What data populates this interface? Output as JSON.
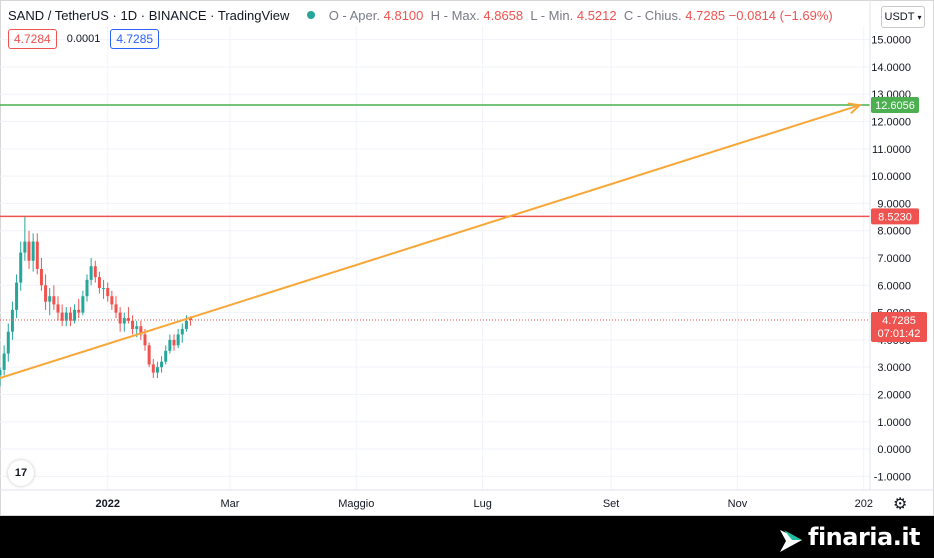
{
  "header": {
    "symbol": "SAND / TetherUS",
    "interval": "1D",
    "exchange": "BINANCE",
    "platform": "TradingView",
    "open_label": "O - Aper.",
    "open_value": "4.8100",
    "high_label": "H - Max.",
    "high_value": "4.8658",
    "low_label": "L - Min.",
    "low_value": "4.5212",
    "close_label": "C - Chius.",
    "close_value": "4.7285",
    "change_value": "−0.0814 (−1.69%)"
  },
  "quote": {
    "bid": "4.7284",
    "spread": "0.0001",
    "ask": "4.7285"
  },
  "currency_selector": "USDT",
  "colors": {
    "up": "#26a69a",
    "down": "#ef5350",
    "trendline": "#f7a738",
    "resistance": "#ef5350",
    "target": "#4caf50",
    "price_line": "#ef5350"
  },
  "brand": {
    "name": "finaria.it"
  },
  "chart_data": {
    "type": "candlestick",
    "title": "",
    "xlabel": "",
    "ylabel": "",
    "ylim": [
      -1.5,
      15.5
    ],
    "x_ticks": [
      "2022",
      "Mar",
      "Maggio",
      "Lug",
      "Set",
      "Nov",
      "202"
    ],
    "y_ticks": [
      "15.0000",
      "14.0000",
      "13.0000",
      "12.0000",
      "11.0000",
      "10.0000",
      "9.0000",
      "8.0000",
      "7.0000",
      "6.0000",
      "5.0000",
      "4.0000",
      "3.0000",
      "2.0000",
      "1.0000",
      "0.0000",
      "-1.0000"
    ],
    "x_tick_dates": [
      "2022-01-01",
      "2022-03-01",
      "2022-05-01",
      "2022-07-01",
      "2022-09-01",
      "2022-11-01",
      "2023-01-01"
    ],
    "x_range": [
      "2021-11-10",
      "2023-01-04"
    ],
    "horizontal_lines": [
      {
        "label": "12.6056",
        "value": 12.6056,
        "color": "#4caf50"
      },
      {
        "label": "8.5230",
        "value": 8.523,
        "color": "#ef5350"
      }
    ],
    "current_price": {
      "label": "4.7285",
      "value": 4.7285,
      "countdown": "07:01:42"
    },
    "trendline": {
      "start": [
        "2021-11-10",
        2.6
      ],
      "end": [
        "2022-12-30",
        12.6
      ]
    },
    "candles": [
      {
        "d": "2021-11-10",
        "o": 2.7,
        "h": 3.0,
        "l": 2.3,
        "c": 2.9
      },
      {
        "d": "2021-11-12",
        "o": 2.9,
        "h": 3.8,
        "l": 2.7,
        "c": 3.5
      },
      {
        "d": "2021-11-14",
        "o": 3.5,
        "h": 4.6,
        "l": 3.2,
        "c": 4.3
      },
      {
        "d": "2021-11-16",
        "o": 4.3,
        "h": 5.4,
        "l": 4.0,
        "c": 5.1
      },
      {
        "d": "2021-11-18",
        "o": 5.1,
        "h": 6.4,
        "l": 4.8,
        "c": 6.1
      },
      {
        "d": "2021-11-20",
        "o": 6.1,
        "h": 7.6,
        "l": 5.8,
        "c": 7.2
      },
      {
        "d": "2021-11-22",
        "o": 7.2,
        "h": 8.5,
        "l": 6.9,
        "c": 7.6
      },
      {
        "d": "2021-11-24",
        "o": 7.6,
        "h": 8.0,
        "l": 6.6,
        "c": 6.9
      },
      {
        "d": "2021-11-26",
        "o": 6.9,
        "h": 7.9,
        "l": 6.5,
        "c": 7.6
      },
      {
        "d": "2021-11-28",
        "o": 7.6,
        "h": 7.9,
        "l": 6.4,
        "c": 6.6
      },
      {
        "d": "2021-11-30",
        "o": 6.6,
        "h": 7.0,
        "l": 5.8,
        "c": 6.0
      },
      {
        "d": "2021-12-02",
        "o": 6.0,
        "h": 6.4,
        "l": 5.1,
        "c": 5.4
      },
      {
        "d": "2021-12-04",
        "o": 5.4,
        "h": 5.9,
        "l": 4.9,
        "c": 5.6
      },
      {
        "d": "2021-12-06",
        "o": 5.6,
        "h": 6.0,
        "l": 5.1,
        "c": 5.3
      },
      {
        "d": "2021-12-08",
        "o": 5.3,
        "h": 5.6,
        "l": 4.7,
        "c": 5.0
      },
      {
        "d": "2021-12-10",
        "o": 5.0,
        "h": 5.3,
        "l": 4.5,
        "c": 4.7
      },
      {
        "d": "2021-12-12",
        "o": 4.7,
        "h": 5.2,
        "l": 4.5,
        "c": 5.0
      },
      {
        "d": "2021-12-14",
        "o": 5.0,
        "h": 5.2,
        "l": 4.5,
        "c": 4.7
      },
      {
        "d": "2021-12-16",
        "o": 4.7,
        "h": 5.3,
        "l": 4.6,
        "c": 5.1
      },
      {
        "d": "2021-12-18",
        "o": 5.1,
        "h": 5.5,
        "l": 4.8,
        "c": 5.0
      },
      {
        "d": "2021-12-20",
        "o": 5.0,
        "h": 5.8,
        "l": 4.9,
        "c": 5.6
      },
      {
        "d": "2021-12-22",
        "o": 5.6,
        "h": 6.4,
        "l": 5.4,
        "c": 6.2
      },
      {
        "d": "2021-12-24",
        "o": 6.2,
        "h": 7.0,
        "l": 6.0,
        "c": 6.7
      },
      {
        "d": "2021-12-26",
        "o": 6.7,
        "h": 6.9,
        "l": 6.1,
        "c": 6.3
      },
      {
        "d": "2021-12-28",
        "o": 6.3,
        "h": 6.5,
        "l": 5.7,
        "c": 5.9
      },
      {
        "d": "2021-12-30",
        "o": 5.9,
        "h": 6.2,
        "l": 5.5,
        "c": 5.9
      },
      {
        "d": "2022-01-01",
        "o": 5.9,
        "h": 6.1,
        "l": 5.4,
        "c": 5.6
      },
      {
        "d": "2022-01-03",
        "o": 5.6,
        "h": 5.8,
        "l": 5.1,
        "c": 5.3
      },
      {
        "d": "2022-01-05",
        "o": 5.3,
        "h": 5.6,
        "l": 4.8,
        "c": 5.0
      },
      {
        "d": "2022-01-07",
        "o": 5.0,
        "h": 5.2,
        "l": 4.3,
        "c": 4.6
      },
      {
        "d": "2022-01-09",
        "o": 4.6,
        "h": 5.0,
        "l": 4.3,
        "c": 4.8
      },
      {
        "d": "2022-01-11",
        "o": 4.8,
        "h": 5.2,
        "l": 4.6,
        "c": 4.7
      },
      {
        "d": "2022-01-13",
        "o": 4.7,
        "h": 4.9,
        "l": 4.2,
        "c": 4.4
      },
      {
        "d": "2022-01-15",
        "o": 4.4,
        "h": 4.7,
        "l": 4.1,
        "c": 4.5
      },
      {
        "d": "2022-01-17",
        "o": 4.5,
        "h": 4.7,
        "l": 4.0,
        "c": 4.2
      },
      {
        "d": "2022-01-19",
        "o": 4.2,
        "h": 4.4,
        "l": 3.6,
        "c": 3.8
      },
      {
        "d": "2022-01-21",
        "o": 3.8,
        "h": 3.9,
        "l": 3.0,
        "c": 3.1
      },
      {
        "d": "2022-01-23",
        "o": 3.1,
        "h": 3.3,
        "l": 2.6,
        "c": 2.8
      },
      {
        "d": "2022-01-25",
        "o": 2.8,
        "h": 3.2,
        "l": 2.6,
        "c": 3.0
      },
      {
        "d": "2022-01-27",
        "o": 3.0,
        "h": 3.4,
        "l": 2.8,
        "c": 3.2
      },
      {
        "d": "2022-01-29",
        "o": 3.2,
        "h": 3.8,
        "l": 3.1,
        "c": 3.6
      },
      {
        "d": "2022-01-31",
        "o": 3.6,
        "h": 4.2,
        "l": 3.5,
        "c": 4.0
      },
      {
        "d": "2022-02-02",
        "o": 4.0,
        "h": 4.2,
        "l": 3.6,
        "c": 3.8
      },
      {
        "d": "2022-02-04",
        "o": 3.8,
        "h": 4.4,
        "l": 3.7,
        "c": 4.2
      },
      {
        "d": "2022-02-06",
        "o": 4.2,
        "h": 4.6,
        "l": 3.9,
        "c": 4.4
      },
      {
        "d": "2022-02-08",
        "o": 4.4,
        "h": 4.9,
        "l": 4.3,
        "c": 4.7
      },
      {
        "d": "2022-02-10",
        "o": 4.81,
        "h": 4.8658,
        "l": 4.5212,
        "c": 4.7285
      }
    ]
  }
}
